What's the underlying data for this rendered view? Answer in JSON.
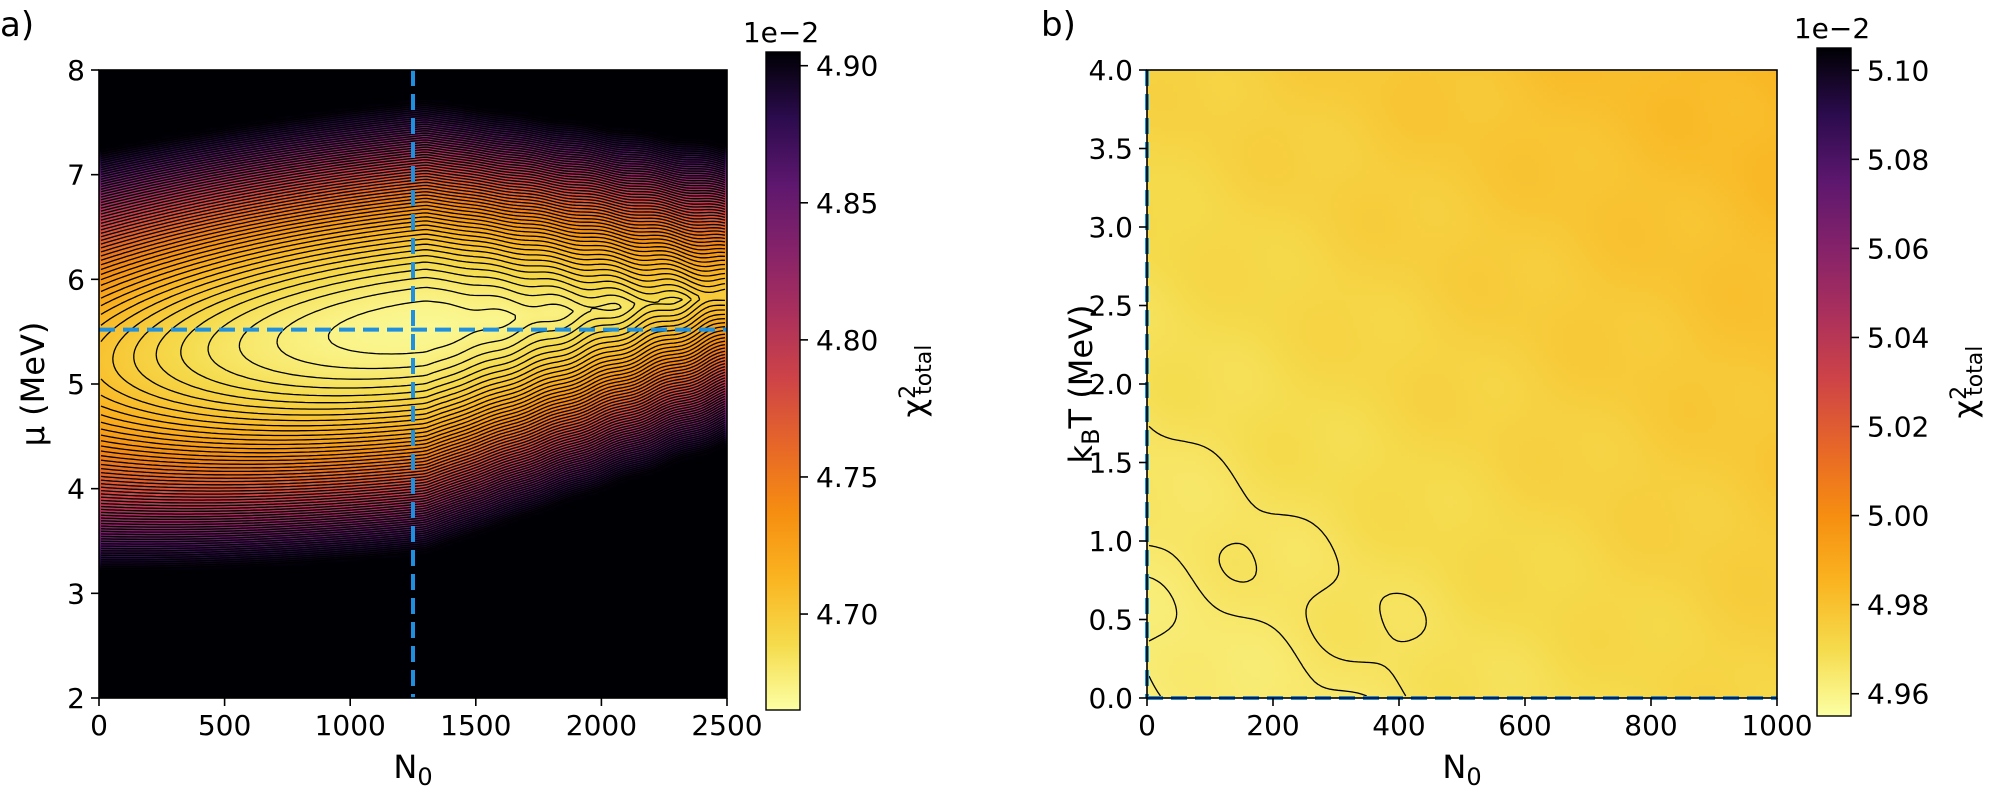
{
  "chart_data": [
    {
      "type": "heatmap",
      "panel_label": "a)",
      "xlabel": "N",
      "xlabel_sub": "0",
      "ylabel": "μ (MeV)",
      "xlim": [
        0,
        2500
      ],
      "ylim": [
        2,
        8
      ],
      "xticks": [
        0,
        500,
        1000,
        1500,
        2000,
        2500
      ],
      "xtick_labels": [
        "0",
        "500",
        "1000",
        "1500",
        "2000",
        "2500"
      ],
      "yticks": [
        2,
        3,
        4,
        5,
        6,
        7,
        8
      ],
      "ytick_labels": [
        "2",
        "3",
        "4",
        "5",
        "6",
        "7",
        "8"
      ],
      "best_fit": {
        "x": 1250,
        "y": 5.52
      },
      "minimum": {
        "x": 1300,
        "y": 5.55,
        "value": 4.67
      },
      "crosshair_color": "#1f8fe0",
      "colorbar": {
        "label": "χ",
        "label_sup": "2",
        "label_sub": "total",
        "exponent": "1e−2",
        "range": [
          4.665,
          4.905
        ],
        "ticks": [
          4.7,
          4.75,
          4.8,
          4.85,
          4.9
        ],
        "tick_labels": [
          "4.70",
          "4.75",
          "4.80",
          "4.85",
          "4.90"
        ],
        "colormap": "inferno_r"
      },
      "contour_levels": 60
    },
    {
      "type": "heatmap",
      "panel_label": "b)",
      "xlabel": "N",
      "xlabel_sub": "0",
      "ylabel": "k",
      "ylabel_sub": "B",
      "ylabel_rest": "T (MeV)",
      "xlim": [
        0,
        1000
      ],
      "ylim": [
        0,
        4
      ],
      "xticks": [
        0,
        200,
        400,
        600,
        800,
        1000
      ],
      "xtick_labels": [
        "0",
        "200",
        "400",
        "600",
        "800",
        "1000"
      ],
      "yticks": [
        0,
        0.5,
        1.0,
        1.5,
        2.0,
        2.5,
        3.0,
        3.5,
        4.0
      ],
      "ytick_labels": [
        "0.0",
        "0.5",
        "1.0",
        "1.5",
        "2.0",
        "2.5",
        "3.0",
        "3.5",
        "4.0"
      ],
      "best_fit": {
        "x": 0,
        "y": 0
      },
      "minimum": {
        "x": 0,
        "y": 0,
        "value": 4.96
      },
      "crosshair_color": "#1f8fe0",
      "colorbar": {
        "label": "χ",
        "label_sup": "2",
        "label_sub": "total",
        "exponent": "1e−2",
        "range": [
          4.955,
          5.105
        ],
        "ticks": [
          4.96,
          4.98,
          5.0,
          5.02,
          5.04,
          5.06,
          5.08,
          5.1
        ],
        "tick_labels": [
          "4.96",
          "4.98",
          "5.00",
          "5.02",
          "5.04",
          "5.06",
          "5.08",
          "5.10"
        ],
        "colormap": "inferno_r"
      },
      "contour_levels": [
        4.961,
        4.963,
        4.965,
        4.967
      ]
    }
  ]
}
